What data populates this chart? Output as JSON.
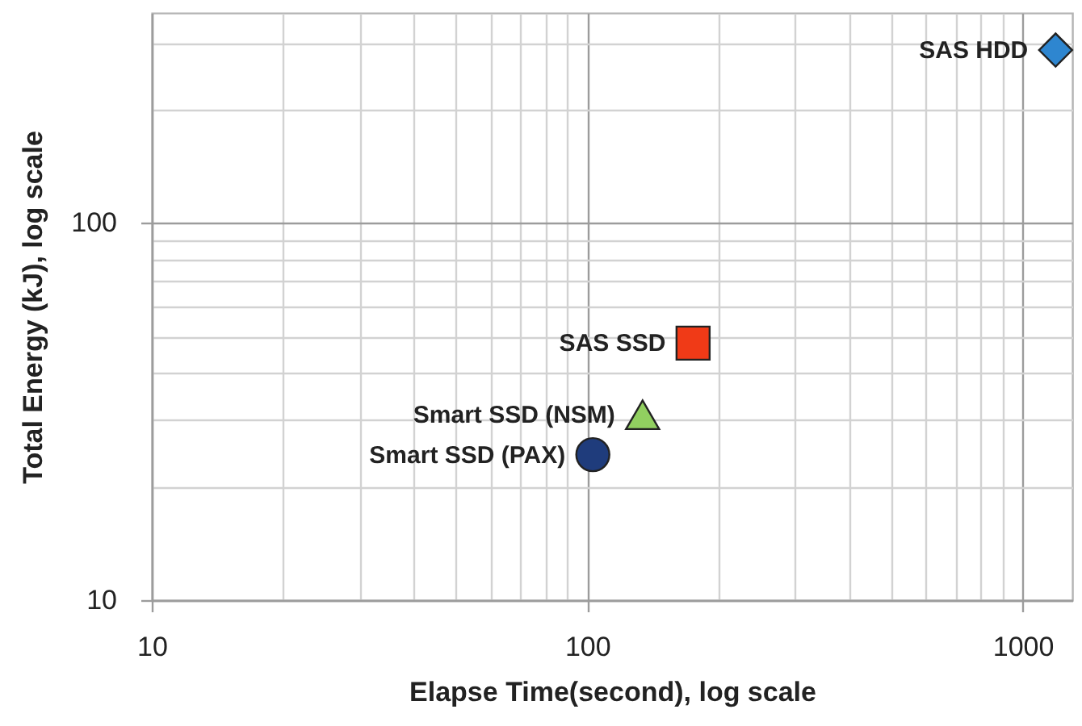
{
  "chart_data": {
    "type": "scatter",
    "xlabel": "Elapse Time(second), log scale",
    "ylabel": "Total Energy (kJ), log scale",
    "series": [
      {
        "name": "SAS HDD",
        "color": "#2e86d0",
        "marker": "diamond",
        "x": [
          1190
        ],
        "values": [
          287
        ]
      },
      {
        "name": "SAS SSD",
        "color": "#f03a17",
        "marker": "square",
        "x": [
          175
        ],
        "values": [
          48
        ]
      },
      {
        "name": "Smart SSD (NSM)",
        "color": "#91cf60",
        "marker": "triangle",
        "x": [
          134
        ],
        "values": [
          31
        ]
      },
      {
        "name": "Smart SSD (PAX)",
        "color": "#1f3c7c",
        "marker": "circle",
        "x": [
          103
        ],
        "values": [
          24.3
        ]
      }
    ],
    "xlim": [
      10,
      1300
    ],
    "ylim": [
      10,
      360
    ],
    "xticks": [
      10,
      {
        "value": 20,
        "label": null
      },
      {
        "value": 30,
        "label": null
      },
      {
        "value": 40,
        "label": null
      },
      {
        "value": 50,
        "label": null
      },
      {
        "value": 60,
        "label": null
      },
      {
        "value": 70,
        "label": null
      },
      {
        "value": 80,
        "label": null
      },
      {
        "value": 90,
        "label": null
      },
      100,
      {
        "value": 200,
        "label": null
      },
      {
        "value": 300,
        "label": null
      },
      {
        "value": 400,
        "label": null
      },
      {
        "value": 500,
        "label": null
      },
      {
        "value": 600,
        "label": null
      },
      {
        "value": 700,
        "label": null
      },
      {
        "value": 800,
        "label": null
      },
      {
        "value": 900,
        "label": null
      },
      1000
    ],
    "yticks": [
      10,
      {
        "value": 20,
        "label": null
      },
      {
        "value": 30,
        "label": null
      },
      {
        "value": 40,
        "label": null
      },
      {
        "value": 50,
        "label": null
      },
      {
        "value": 60,
        "label": null
      },
      {
        "value": 70,
        "label": null
      },
      {
        "value": 80,
        "label": null
      },
      {
        "value": 90,
        "label": null
      },
      100,
      {
        "value": 200,
        "label": null
      },
      {
        "value": 300,
        "label": null
      }
    ],
    "log": "xy",
    "grid": true,
    "legend": false
  }
}
